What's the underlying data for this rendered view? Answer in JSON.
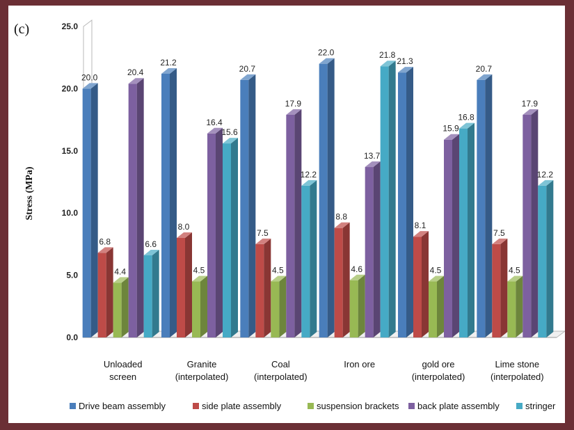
{
  "chart_data": {
    "type": "bar",
    "panel_label": "(c)",
    "title": "",
    "xlabel": "",
    "ylabel": "Stress (MPa)",
    "ylim": [
      0,
      25
    ],
    "yticks": [
      "0.0",
      "5.0",
      "10.0",
      "15.0",
      "20.0",
      "25.0"
    ],
    "ytick_values": [
      0,
      5,
      10,
      15,
      20,
      25
    ],
    "categories": [
      [
        "Unloaded",
        "screen"
      ],
      [
        "Granite",
        "(interpolated)"
      ],
      [
        "Coal",
        "(interpolated)"
      ],
      [
        "Iron ore"
      ],
      [
        "gold ore",
        "(interpolated)"
      ],
      [
        "Lime stone",
        "(interpolated)"
      ]
    ],
    "series": [
      {
        "name": "Drive beam assembly",
        "color": "#4a7ebb",
        "values": [
          20.0,
          21.2,
          20.7,
          22.0,
          21.3,
          20.7
        ],
        "labels": [
          "20.0",
          "21.2",
          "20.7",
          "22.0",
          "21.3",
          "20.7"
        ]
      },
      {
        "name": "side plate assembly",
        "color": "#be4b48",
        "values": [
          6.8,
          8.0,
          7.5,
          8.8,
          8.1,
          7.5
        ],
        "labels": [
          "6.8",
          "8.0",
          "7.5",
          "8.8",
          "8.1",
          "7.5"
        ]
      },
      {
        "name": "suspension brackets",
        "color": "#98b954",
        "values": [
          4.4,
          4.5,
          4.5,
          4.6,
          4.5,
          4.5
        ],
        "labels": [
          "4.4",
          "4.5",
          "4.5",
          "4.6",
          "4.5",
          "4.5"
        ]
      },
      {
        "name": "back plate assembly",
        "color": "#7d60a0",
        "values": [
          20.4,
          16.4,
          17.9,
          13.7,
          15.9,
          17.9
        ],
        "labels": [
          "20.4",
          "16.4",
          "17.9",
          "13.7",
          "15.9",
          "17.9"
        ]
      },
      {
        "name": "stringer",
        "color": "#46aac5",
        "values": [
          6.6,
          15.6,
          12.2,
          21.8,
          16.8,
          12.2
        ],
        "labels": [
          "6.6",
          "15.6",
          "12.2",
          "21.8",
          "16.8",
          "12.2"
        ]
      }
    ],
    "grid": false,
    "legend_position": "bottom"
  }
}
